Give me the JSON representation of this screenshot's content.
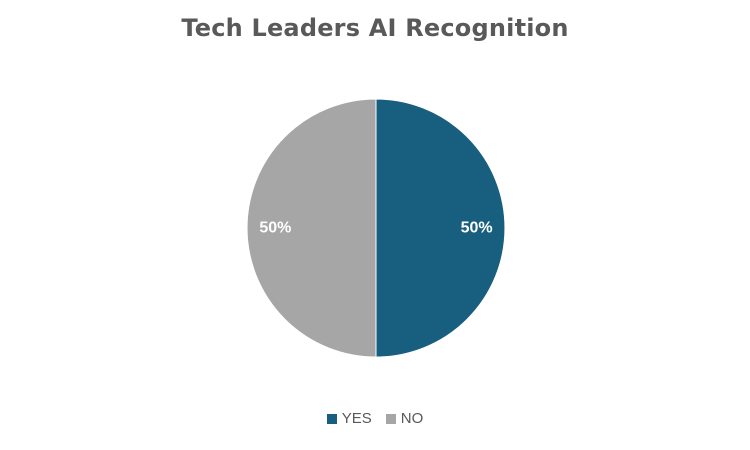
{
  "chart_data": {
    "type": "pie",
    "title": "Tech Leaders AI Recognition",
    "categories": [
      "YES",
      "NO"
    ],
    "values": [
      50,
      50
    ],
    "labels": [
      "50%",
      "50%"
    ],
    "colors": [
      "#175E7F",
      "#A6A6A6"
    ],
    "legend": "bottom"
  }
}
